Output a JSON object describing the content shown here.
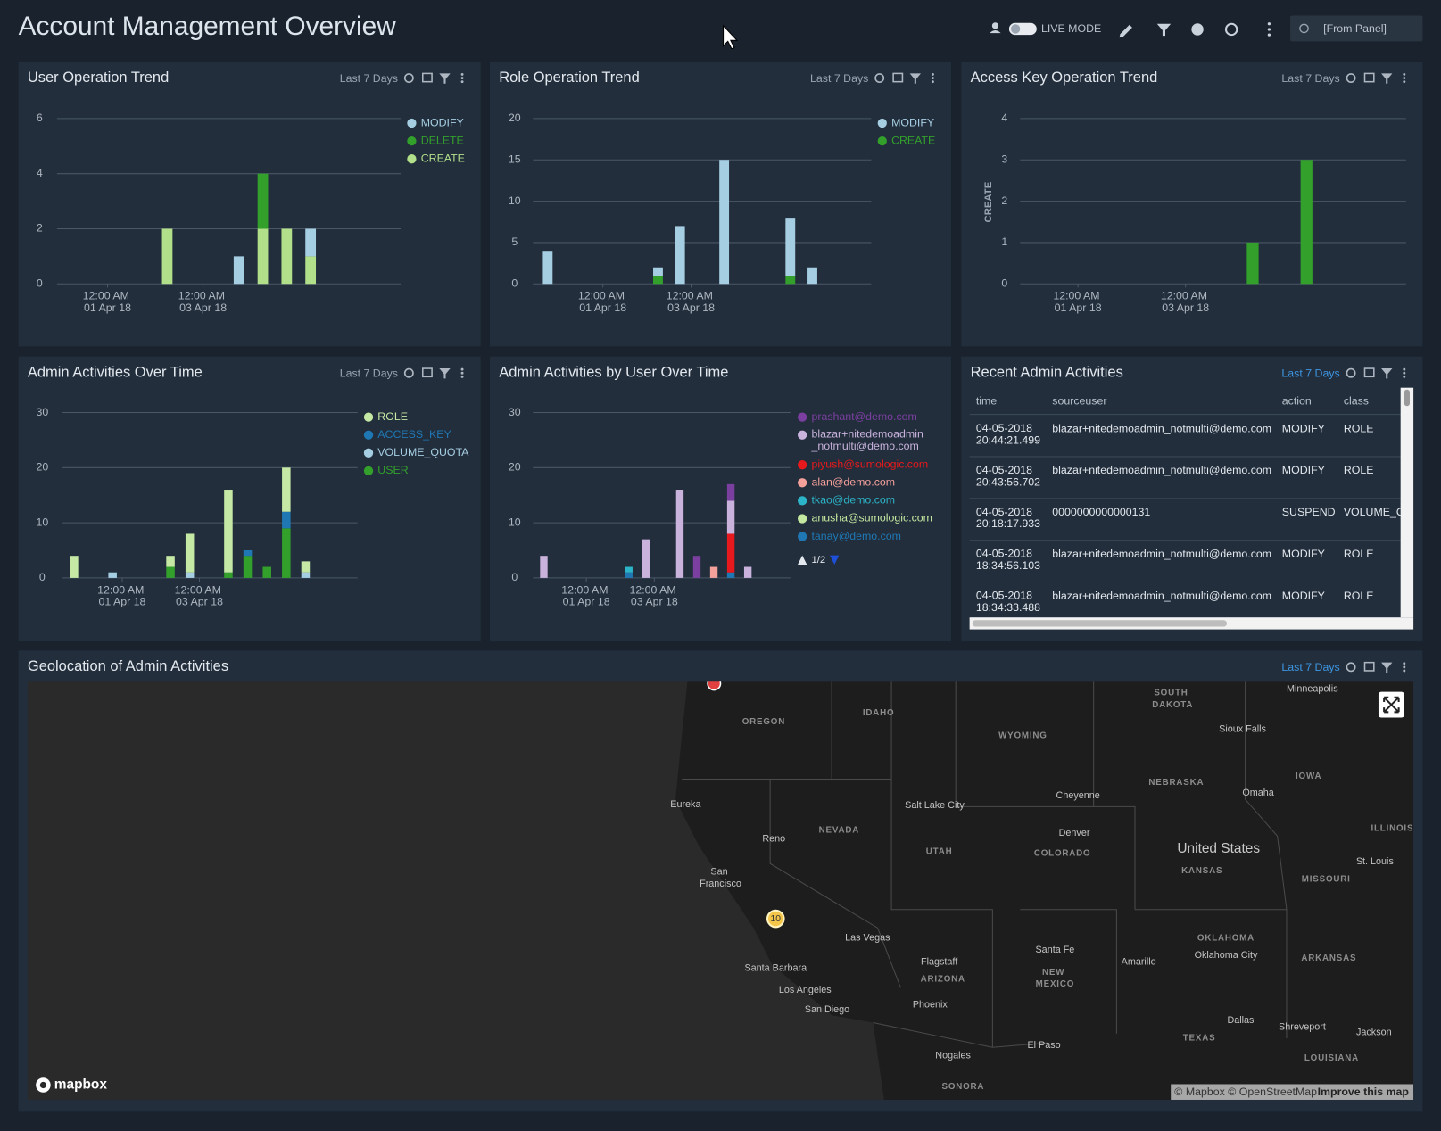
{
  "header": {
    "title": "Account Management Overview",
    "live_mode": "LIVE MODE",
    "time_range": "[From Panel]"
  },
  "charts": [
    {
      "type": "bar",
      "title": "User Operation Trend",
      "time_range": "Last 7 Days",
      "categories": [
        null,
        null,
        "12:00 AM\n01 Apr 18",
        null,
        null,
        null,
        "12:00 AM\n03 Apr 18",
        null,
        null,
        null,
        null,
        null,
        null,
        null
      ],
      "series": [
        {
          "name": "MODIFY",
          "color": "#a6cee3",
          "values": [
            0,
            0,
            0,
            0,
            0,
            0,
            0,
            1,
            0,
            0,
            1,
            0,
            0,
            0
          ]
        },
        {
          "name": "DELETE",
          "color": "#33a02c",
          "values": [
            0,
            0,
            0,
            0,
            0,
            0,
            0,
            0,
            2,
            0,
            0,
            0,
            0,
            0
          ]
        },
        {
          "name": "CREATE",
          "color": "#b2df8a",
          "values": [
            0,
            0,
            0,
            0,
            2,
            0,
            0,
            0,
            2,
            2,
            1,
            0,
            0,
            0
          ]
        }
      ],
      "ylim": [
        0,
        6
      ],
      "yticks": [
        0,
        2,
        4,
        6
      ],
      "stacked": true,
      "legend": true
    },
    {
      "type": "bar",
      "title": "Role Operation Trend",
      "time_range": "Last 7 Days",
      "categories": [
        null,
        null,
        null,
        "12:00 AM\n01 Apr 18",
        null,
        null,
        null,
        "12:00 AM\n03 Apr 18",
        null,
        null,
        null,
        null,
        null,
        null,
        null
      ],
      "series": [
        {
          "name": "MODIFY",
          "color": "#a6cee3",
          "values": [
            4,
            0,
            0,
            0,
            0,
            1,
            7,
            0,
            15,
            0,
            0,
            7,
            2,
            0,
            0
          ]
        },
        {
          "name": "CREATE",
          "color": "#33a02c",
          "values": [
            0,
            0,
            0,
            0,
            0,
            1,
            0,
            0,
            0,
            0,
            0,
            1,
            0,
            0,
            0
          ]
        }
      ],
      "ylim": [
        0,
        20
      ],
      "yticks": [
        0,
        5,
        10,
        15,
        20
      ],
      "stacked": true,
      "legend": true
    },
    {
      "type": "bar",
      "title": "Access Key Operation Trend",
      "time_range": "Last 7 Days",
      "y_label": "CREATE",
      "categories": [
        null,
        null,
        "12:00 AM\n01 Apr 18",
        null,
        null,
        null,
        "12:00 AM\n03 Apr 18",
        null,
        null,
        null,
        null,
        null,
        null,
        null
      ],
      "series": [
        {
          "name": "CREATE",
          "color": "#33a02c",
          "values": [
            0,
            0,
            0,
            0,
            0,
            0,
            0,
            0,
            1,
            0,
            3,
            0,
            0,
            0
          ]
        }
      ],
      "ylim": [
        0,
        4
      ],
      "yticks": [
        0,
        1,
        2,
        3,
        4
      ],
      "stacked": true,
      "legend": false
    },
    {
      "type": "bar",
      "title": "Admin Activities Over Time",
      "time_range": "Last 7 Days",
      "categories": [
        null,
        null,
        null,
        "12:00 AM\n01 Apr 18",
        null,
        null,
        null,
        "12:00 AM\n03 Apr 18",
        null,
        null,
        null,
        null,
        null,
        null,
        null
      ],
      "series": [
        {
          "name": "ROLE",
          "color": "#c5e8a5",
          "values": [
            4,
            0,
            0,
            0,
            0,
            2,
            7,
            0,
            15,
            0,
            0,
            8,
            2,
            0,
            0
          ]
        },
        {
          "name": "ACCESS_KEY",
          "color": "#1f78b4",
          "values": [
            0,
            0,
            0,
            0,
            0,
            0,
            0,
            0,
            0,
            1,
            0,
            3,
            0,
            0,
            0
          ]
        },
        {
          "name": "VOLUME_QUOTA",
          "color": "#a6cee3",
          "values": [
            0,
            0,
            1,
            0,
            0,
            0,
            1,
            0,
            0,
            0,
            0,
            0,
            1,
            0,
            0
          ]
        },
        {
          "name": "USER",
          "color": "#33a02c",
          "values": [
            0,
            0,
            0,
            0,
            0,
            2,
            0,
            0,
            1,
            4,
            2,
            9,
            0,
            0,
            0
          ]
        }
      ],
      "ylim": [
        0,
        30
      ],
      "yticks": [
        0,
        10,
        20,
        30
      ],
      "stacked": true,
      "legend": true
    },
    {
      "type": "bar",
      "title": "Admin Activities by User Over Time",
      "time_range": null,
      "categories": [
        null,
        null,
        null,
        "12:00 AM\n01 Apr 18",
        null,
        null,
        null,
        "12:00 AM\n03 Apr 18",
        null,
        null,
        null,
        null,
        null,
        null,
        null
      ],
      "series": [
        {
          "name": "prashant@demo.com",
          "color": "#7b3fa0",
          "values": [
            0,
            0,
            0,
            0,
            0,
            0,
            0,
            0,
            0,
            4,
            0,
            3,
            0,
            0,
            0
          ]
        },
        {
          "name": "blazar+nitedemoadmin\n_notmulti@demo.com",
          "color": "#c9b3dd",
          "values": [
            4,
            0,
            0,
            0,
            0,
            0,
            7,
            0,
            16,
            0,
            0,
            6,
            2,
            0,
            0
          ]
        },
        {
          "name": "piyush@sumologic.com",
          "color": "#e8191c",
          "values": [
            0,
            0,
            0,
            0,
            0,
            0,
            0,
            0,
            0,
            0,
            0,
            7,
            0,
            0,
            0
          ]
        },
        {
          "name": "alan@demo.com",
          "color": "#f4a09b",
          "values": [
            0,
            0,
            0,
            0,
            0,
            0,
            0,
            0,
            0,
            0,
            2,
            0,
            0,
            0,
            0
          ]
        },
        {
          "name": "tkao@demo.com",
          "color": "#2cb5c8",
          "values": [
            0,
            0,
            0,
            0,
            0,
            1,
            0,
            0,
            0,
            0,
            0,
            0,
            0,
            0,
            0
          ]
        },
        {
          "name": "anusha@sumologic.com",
          "color": "#c5e8a0",
          "values": [
            0,
            0,
            0,
            0,
            0,
            0,
            0,
            0,
            0,
            0,
            0,
            0,
            0,
            0,
            0
          ]
        },
        {
          "name": "tanay@demo.com",
          "color": "#1f78b4",
          "values": [
            0,
            0,
            0,
            0,
            0,
            1,
            0,
            0,
            0,
            0,
            0,
            1,
            0,
            0,
            0
          ]
        }
      ],
      "ylim": [
        0,
        30
      ],
      "yticks": [
        0,
        10,
        20,
        30
      ],
      "stacked": true,
      "legend": true,
      "legend_page": "1/2"
    }
  ],
  "table": {
    "title": "Recent Admin Activities",
    "time_range": "Last 7 Days",
    "columns": [
      "time",
      "sourceuser",
      "action",
      "class"
    ],
    "rows": [
      [
        "04-05-2018\n20:44:21.499",
        "blazar+nitedemoadmin_notmulti@demo.com",
        "MODIFY",
        "ROLE"
      ],
      [
        "04-05-2018\n20:43:56.702",
        "blazar+nitedemoadmin_notmulti@demo.com",
        "MODIFY",
        "ROLE"
      ],
      [
        "04-05-2018\n20:18:17.933",
        "0000000000000131",
        "SUSPEND",
        "VOLUME_QUOTA"
      ],
      [
        "04-05-2018\n18:34:56.103",
        "blazar+nitedemoadmin_notmulti@demo.com",
        "MODIFY",
        "ROLE"
      ],
      [
        "04-05-2018\n18:34:33.488",
        "blazar+nitedemoadmin_notmulti@demo.com",
        "MODIFY",
        "ROLE"
      ]
    ]
  },
  "map": {
    "title": "Geolocation of Admin Activities",
    "time_range": "Last 7 Days",
    "cluster_count": "10",
    "logo": "mapbox",
    "attribution": "© Mapbox © OpenStreetMap",
    "improve": "Improve this map",
    "labels": [
      "OREGON",
      "IDAHO",
      "WYOMING",
      "SOUTH\nDAKOTA",
      "Minneapolis",
      "Sioux Falls",
      "NEBRASKA",
      "IOWA",
      "Omaha",
      "Cheyenne",
      "Eureka",
      "Salt Lake City",
      "NEVADA",
      "Denver",
      "Reno",
      "UTAH",
      "COLORADO",
      "United States",
      "KANSAS",
      "ILLINOIS",
      "St. Louis",
      "MISSOURI",
      "San\nFrancisco",
      "Las Vegas",
      "OKLAHOMA",
      "Santa Fe",
      "Oklahoma City",
      "ARKANSAS",
      "Flagstaff",
      "Amarillo",
      "Santa Barbara",
      "ARIZONA",
      "NEW\nMEXICO",
      "Los Angeles",
      "Phoenix",
      "San Diego",
      "Dallas",
      "Shreveport",
      "Jackson",
      "TEXAS",
      "El Paso",
      "Nogales",
      "LOUISIANA",
      "SONORA"
    ]
  }
}
